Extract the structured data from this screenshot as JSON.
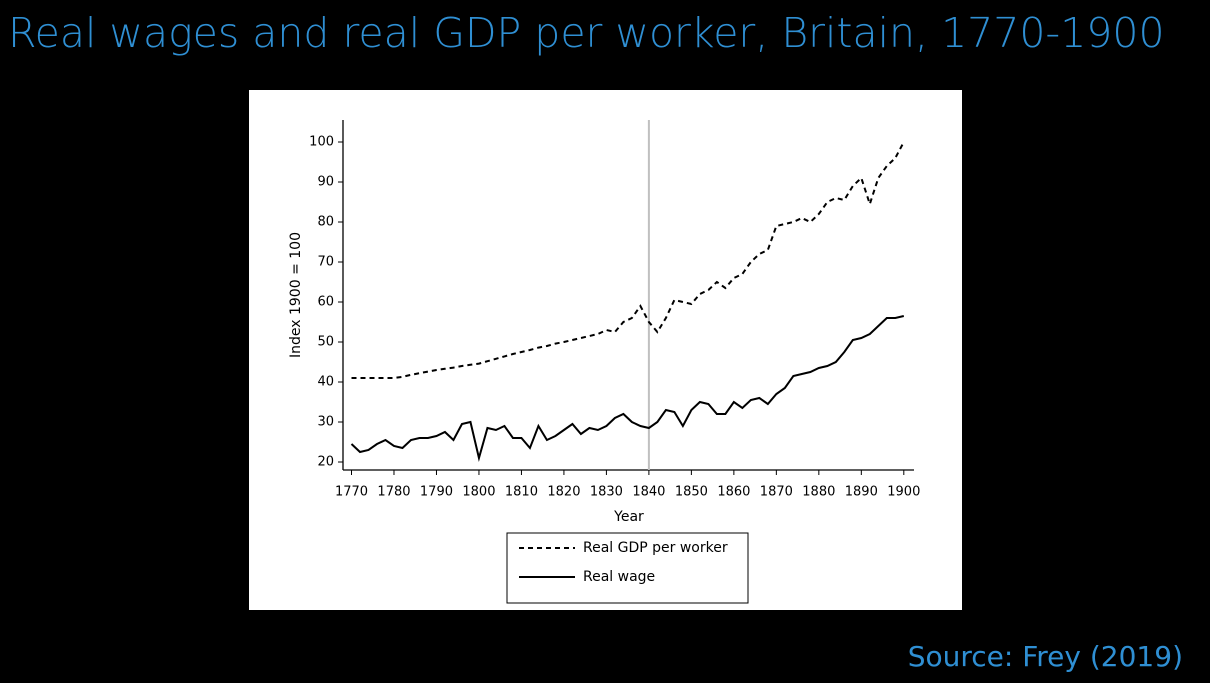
{
  "title": "Real wages and real GDP per worker, Britain, 1770-1900",
  "source": "Source: Frey (2019)",
  "chart_data": {
    "type": "line",
    "x_label": "Year",
    "y_label": "Index 1900 = 100",
    "x": [
      1770,
      1772,
      1774,
      1776,
      1778,
      1780,
      1782,
      1784,
      1786,
      1788,
      1790,
      1792,
      1794,
      1796,
      1798,
      1800,
      1802,
      1804,
      1806,
      1808,
      1810,
      1812,
      1814,
      1816,
      1818,
      1820,
      1822,
      1824,
      1826,
      1828,
      1830,
      1832,
      1834,
      1836,
      1838,
      1840,
      1842,
      1844,
      1846,
      1848,
      1850,
      1852,
      1854,
      1856,
      1858,
      1860,
      1862,
      1864,
      1866,
      1868,
      1870,
      1872,
      1874,
      1876,
      1878,
      1880,
      1882,
      1884,
      1886,
      1888,
      1890,
      1892,
      1894,
      1896,
      1898,
      1900
    ],
    "series": [
      {
        "name": "Real GDP per worker",
        "color": "#000000",
        "dash": "dashed",
        "values": [
          41,
          41,
          41,
          41,
          41,
          41,
          41.3,
          41.8,
          42.2,
          42.6,
          43,
          43.3,
          43.6,
          44,
          44.3,
          44.6,
          45.2,
          45.8,
          46.4,
          47,
          47.5,
          48,
          48.6,
          49,
          49.6,
          50,
          50.5,
          51,
          51.5,
          52,
          53,
          52.5,
          55,
          56,
          59,
          55,
          52.5,
          56,
          60.5,
          60,
          59.5,
          62,
          63,
          65,
          63.5,
          66,
          67,
          70,
          72,
          73,
          79,
          79.5,
          80,
          81,
          80,
          82,
          85,
          86,
          85.5,
          89,
          91,
          84.5,
          91,
          94,
          96,
          100
        ]
      },
      {
        "name": "Real wage",
        "color": "#000000",
        "dash": "solid",
        "values": [
          24.5,
          22.5,
          23,
          24.5,
          25.5,
          24,
          23.5,
          25.5,
          26,
          26,
          26.5,
          27.5,
          25.5,
          29.5,
          30,
          21,
          28.5,
          28,
          29,
          26,
          26,
          23.5,
          29,
          25.5,
          26.5,
          28,
          29.5,
          27,
          28.5,
          28,
          29,
          31,
          32,
          30,
          29,
          28.5,
          30,
          33,
          32.5,
          29,
          33,
          35,
          34.5,
          32,
          32,
          35,
          33.5,
          35.5,
          36,
          34.5,
          37,
          38.5,
          41.5,
          42,
          42.5,
          43.5,
          44,
          45,
          47.5,
          50.5,
          51,
          52,
          54,
          56,
          56,
          56.5
        ]
      }
    ],
    "vline": 1840,
    "vline_color": "#c0c0c0",
    "xlim": [
      1768,
      1902.4
    ],
    "ylim": [
      18,
      105.5
    ],
    "xticks": [
      1770,
      1780,
      1790,
      1800,
      1810,
      1820,
      1830,
      1840,
      1850,
      1860,
      1870,
      1880,
      1890,
      1900
    ],
    "yticks": [
      20,
      30,
      40,
      50,
      60,
      70,
      80,
      90,
      100
    ],
    "grid": false,
    "legend": "bottom"
  }
}
